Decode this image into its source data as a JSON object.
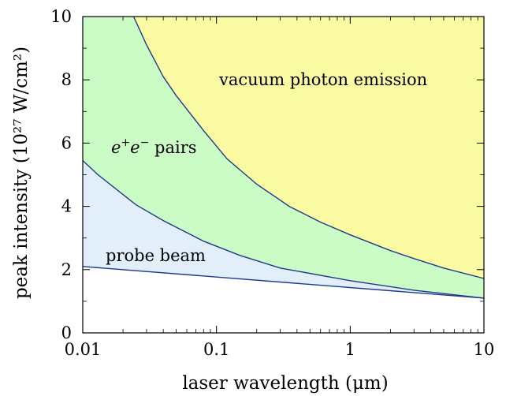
{
  "chart_data": {
    "type": "area",
    "title": "",
    "xlabel": "laser wavelength (μm)",
    "ylabel": "peak intensity (10²⁷ W/cm²)",
    "xscale": "log",
    "xlim": [
      0.01,
      10
    ],
    "ylim": [
      0,
      10
    ],
    "xticks": [
      {
        "value": 0.01,
        "label": "0.01"
      },
      {
        "value": 0.1,
        "label": "0.1"
      },
      {
        "value": 1,
        "label": "1"
      },
      {
        "value": 10,
        "label": "10"
      }
    ],
    "yticks": [
      {
        "value": 0,
        "label": "0"
      },
      {
        "value": 2,
        "label": "2"
      },
      {
        "value": 4,
        "label": "4"
      },
      {
        "value": 6,
        "label": "6"
      },
      {
        "value": 8,
        "label": "8"
      },
      {
        "value": 10,
        "label": "10"
      }
    ],
    "grid": false,
    "boundaries": {
      "lower": {
        "x": [
          0.01,
          10
        ],
        "y": [
          2.1,
          1.1
        ]
      },
      "middle": {
        "x": [
          0.01,
          0.013,
          0.025,
          0.04,
          0.08,
          0.15,
          0.3,
          1,
          3,
          10
        ],
        "y": [
          5.45,
          5.0,
          4.05,
          3.55,
          2.9,
          2.45,
          2.05,
          1.65,
          1.35,
          1.1
        ]
      },
      "upper": {
        "x": [
          0.024,
          0.03,
          0.04,
          0.05,
          0.08,
          0.12,
          0.2,
          0.35,
          0.6,
          1,
          2,
          3,
          5,
          10
        ],
        "y": [
          10,
          9.1,
          8.1,
          7.5,
          6.4,
          5.5,
          4.7,
          4.0,
          3.5,
          3.1,
          2.6,
          2.35,
          2.05,
          1.72
        ]
      }
    },
    "regions": [
      {
        "label": "probe beam",
        "color": "#e3eefb"
      },
      {
        "label_base": "e",
        "label_sup1": "+",
        "label_mid": "e",
        "label_sup2": "−",
        "label_tail": " pairs",
        "color": "#ccfcc6"
      },
      {
        "label": "vacuum photon emission",
        "color": "#fafaa2"
      }
    ],
    "line_color": "#1f3a8a"
  }
}
